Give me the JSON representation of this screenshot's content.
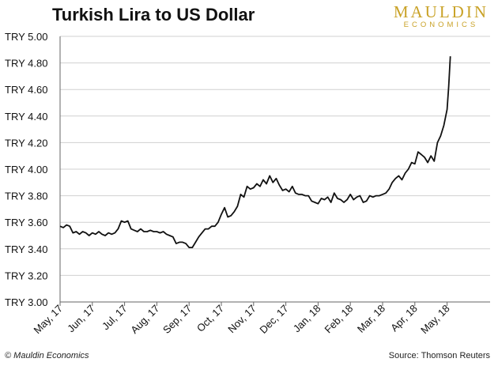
{
  "chart_data": {
    "type": "line",
    "title": "Turkish Lira to US Dollar",
    "xlabel": "",
    "ylabel": "",
    "ylim": [
      3.0,
      5.0
    ],
    "yticks": [
      3.0,
      3.2,
      3.4,
      3.6,
      3.8,
      4.0,
      4.2,
      4.4,
      4.6,
      4.8,
      5.0
    ],
    "ytick_labels": [
      "TRY 3.00",
      "TRY 3.20",
      "TRY 3.40",
      "TRY 3.60",
      "TRY 3.80",
      "TRY 4.00",
      "TRY 4.20",
      "TRY 4.40",
      "TRY 4.60",
      "TRY 4.80",
      "TRY 5.00"
    ],
    "xtick_labels": [
      "May, 17",
      "Jun, 17",
      "Jul, 17",
      "Aug, 17",
      "Sep, 17",
      "Oct, 17",
      "Nov, 17",
      "Dec, 17",
      "Jan, 18",
      "Feb, 18",
      "Mar, 18",
      "Apr, 18",
      "May, 18"
    ],
    "xlim": [
      0,
      12.1
    ],
    "grid": true,
    "legend": "none",
    "series": [
      {
        "color": "#111111",
        "x": [
          0,
          0.1,
          0.2,
          0.3,
          0.4,
          0.5,
          0.6,
          0.7,
          0.8,
          0.9,
          1.0,
          1.1,
          1.2,
          1.3,
          1.4,
          1.5,
          1.6,
          1.7,
          1.8,
          1.9,
          2.0,
          2.1,
          2.2,
          2.3,
          2.4,
          2.5,
          2.6,
          2.7,
          2.8,
          2.9,
          3.0,
          3.1,
          3.2,
          3.3,
          3.4,
          3.5,
          3.6,
          3.7,
          3.8,
          3.9,
          4.0,
          4.1,
          4.2,
          4.3,
          4.4,
          4.5,
          4.6,
          4.7,
          4.8,
          4.9,
          5.0,
          5.1,
          5.2,
          5.3,
          5.4,
          5.5,
          5.6,
          5.7,
          5.8,
          5.9,
          6.0,
          6.1,
          6.2,
          6.3,
          6.4,
          6.5,
          6.6,
          6.7,
          6.8,
          6.9,
          7.0,
          7.1,
          7.2,
          7.3,
          7.4,
          7.5,
          7.6,
          7.7,
          7.8,
          7.9,
          8.0,
          8.1,
          8.2,
          8.3,
          8.4,
          8.5,
          8.6,
          8.7,
          8.8,
          8.9,
          9.0,
          9.1,
          9.2,
          9.3,
          9.4,
          9.5,
          9.6,
          9.7,
          9.8,
          9.9,
          10.0,
          10.1,
          10.2,
          10.3,
          10.4,
          10.5,
          10.6,
          10.7,
          10.8,
          10.9,
          11.0,
          11.1,
          11.2,
          11.3,
          11.4,
          11.5,
          11.6,
          11.7,
          11.8,
          11.9,
          12.0,
          12.05,
          12.1
        ],
        "y": [
          3.57,
          3.56,
          3.58,
          3.57,
          3.52,
          3.53,
          3.51,
          3.53,
          3.52,
          3.5,
          3.52,
          3.51,
          3.53,
          3.51,
          3.5,
          3.52,
          3.51,
          3.52,
          3.55,
          3.61,
          3.6,
          3.61,
          3.55,
          3.54,
          3.53,
          3.55,
          3.53,
          3.53,
          3.54,
          3.53,
          3.53,
          3.52,
          3.53,
          3.51,
          3.5,
          3.49,
          3.44,
          3.45,
          3.45,
          3.44,
          3.41,
          3.41,
          3.45,
          3.49,
          3.52,
          3.55,
          3.55,
          3.57,
          3.57,
          3.6,
          3.66,
          3.71,
          3.64,
          3.65,
          3.68,
          3.72,
          3.81,
          3.79,
          3.87,
          3.85,
          3.86,
          3.89,
          3.87,
          3.92,
          3.89,
          3.95,
          3.9,
          3.93,
          3.88,
          3.84,
          3.85,
          3.83,
          3.87,
          3.82,
          3.81,
          3.81,
          3.8,
          3.8,
          3.76,
          3.75,
          3.74,
          3.78,
          3.77,
          3.79,
          3.75,
          3.82,
          3.78,
          3.77,
          3.75,
          3.77,
          3.81,
          3.77,
          3.79,
          3.8,
          3.75,
          3.76,
          3.8,
          3.79,
          3.8,
          3.8,
          3.81,
          3.82,
          3.85,
          3.9,
          3.93,
          3.95,
          3.92,
          3.97,
          4.0,
          4.05,
          4.04,
          4.13,
          4.11,
          4.09,
          4.05,
          4.1,
          4.06,
          4.2,
          4.25,
          4.33,
          4.45,
          4.62,
          4.85
        ]
      }
    ]
  },
  "footer": {
    "copyright": "© Mauldin Economics",
    "source": "Source: Thomson Reuters"
  },
  "logo": {
    "main": "MAULDIN",
    "sub": "ECONOMICS"
  }
}
